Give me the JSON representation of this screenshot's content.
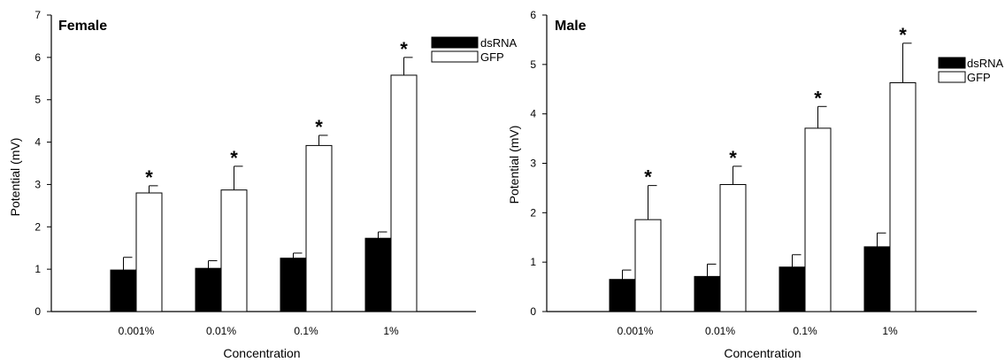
{
  "colors": {
    "dsRNA": "#000000",
    "GFP": "#ffffff",
    "outline": "#000000"
  },
  "chart_data": [
    {
      "type": "bar",
      "title": "Female",
      "xlabel": "Concentration",
      "ylabel": "Potential (mV)",
      "ylim": [
        0,
        7
      ],
      "yticks": [
        "0",
        "1",
        "2",
        "3",
        "4",
        "5",
        "6",
        "7"
      ],
      "categories": [
        "0.001%",
        "0.01%",
        "0.1%",
        "1%"
      ],
      "legend_position": "top-right",
      "series": [
        {
          "name": "dsRNA",
          "values": [
            0.98,
            1.02,
            1.26,
            1.73
          ],
          "errors": [
            0.3,
            0.18,
            0.12,
            0.15
          ]
        },
        {
          "name": "GFP",
          "values": [
            2.8,
            2.87,
            3.92,
            5.58
          ],
          "errors": [
            0.17,
            0.56,
            0.24,
            0.42
          ]
        }
      ],
      "annotations": [
        "*",
        "*",
        "*",
        "*"
      ]
    },
    {
      "type": "bar",
      "title": "Male",
      "xlabel": "Concentration",
      "ylabel": "Potential (mV)",
      "ylim": [
        0,
        6
      ],
      "yticks": [
        "0",
        "1",
        "2",
        "3",
        "4",
        "5",
        "6"
      ],
      "categories": [
        "0.001%",
        "0.01%",
        "0.1%",
        "1%"
      ],
      "legend_position": "top-right",
      "series": [
        {
          "name": "dsRNA",
          "values": [
            0.65,
            0.71,
            0.9,
            1.31
          ],
          "errors": [
            0.19,
            0.25,
            0.25,
            0.28
          ]
        },
        {
          "name": "GFP",
          "values": [
            1.86,
            2.57,
            3.71,
            4.63
          ],
          "errors": [
            0.69,
            0.37,
            0.44,
            0.8
          ]
        }
      ],
      "annotations": [
        "*",
        "*",
        "*",
        "*"
      ]
    }
  ]
}
